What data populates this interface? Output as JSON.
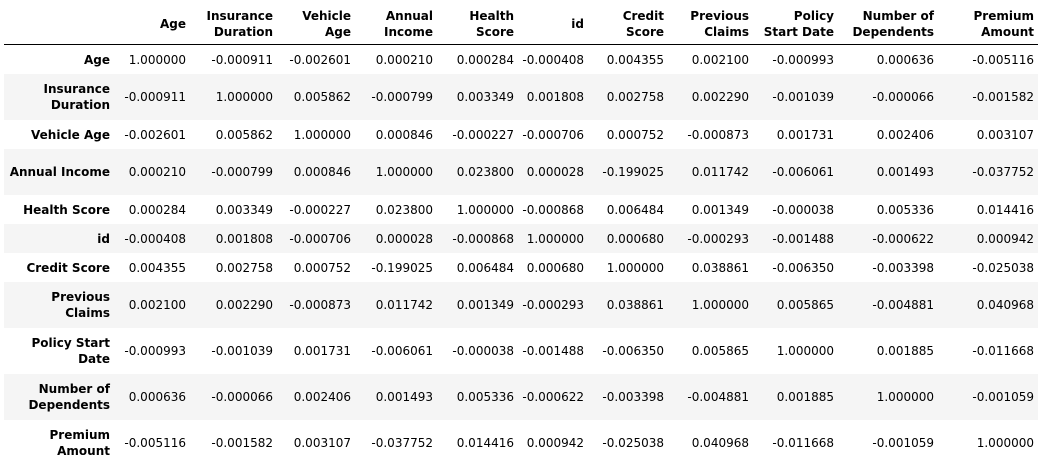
{
  "table": {
    "corner_label": "",
    "columns": [
      "Age",
      "Insurance Duration",
      "Vehicle Age",
      "Annual Income",
      "Health Score",
      "id",
      "Credit Score",
      "Previous Claims",
      "Policy Start Date",
      "Number of Dependents",
      "Premium Amount"
    ],
    "rows": [
      {
        "label": "Age",
        "values": [
          "1.000000",
          "-0.000911",
          "-0.002601",
          "0.000210",
          "0.000284",
          "-0.000408",
          "0.004355",
          "0.002100",
          "-0.000993",
          "0.000636",
          "-0.005116"
        ]
      },
      {
        "label": "Insurance Duration",
        "values": [
          "-0.000911",
          "1.000000",
          "0.005862",
          "-0.000799",
          "0.003349",
          "0.001808",
          "0.002758",
          "0.002290",
          "-0.001039",
          "-0.000066",
          "-0.001582"
        ]
      },
      {
        "label": "Vehicle Age",
        "values": [
          "-0.002601",
          "0.005862",
          "1.000000",
          "0.000846",
          "-0.000227",
          "-0.000706",
          "0.000752",
          "-0.000873",
          "0.001731",
          "0.002406",
          "0.003107"
        ]
      },
      {
        "label": "Annual Income",
        "values": [
          "0.000210",
          "-0.000799",
          "0.000846",
          "1.000000",
          "0.023800",
          "0.000028",
          "-0.199025",
          "0.011742",
          "-0.006061",
          "0.001493",
          "-0.037752"
        ]
      },
      {
        "label": "Health Score",
        "values": [
          "0.000284",
          "0.003349",
          "-0.000227",
          "0.023800",
          "1.000000",
          "-0.000868",
          "0.006484",
          "0.001349",
          "-0.000038",
          "0.005336",
          "0.014416"
        ]
      },
      {
        "label": "id",
        "values": [
          "-0.000408",
          "0.001808",
          "-0.000706",
          "0.000028",
          "-0.000868",
          "1.000000",
          "0.000680",
          "-0.000293",
          "-0.001488",
          "-0.000622",
          "0.000942"
        ]
      },
      {
        "label": "Credit Score",
        "values": [
          "0.004355",
          "0.002758",
          "0.000752",
          "-0.199025",
          "0.006484",
          "0.000680",
          "1.000000",
          "0.038861",
          "-0.006350",
          "-0.003398",
          "-0.025038"
        ]
      },
      {
        "label": "Previous Claims",
        "values": [
          "0.002100",
          "0.002290",
          "-0.000873",
          "0.011742",
          "0.001349",
          "-0.000293",
          "0.038861",
          "1.000000",
          "0.005865",
          "-0.004881",
          "0.040968"
        ]
      },
      {
        "label": "Policy Start Date",
        "values": [
          "-0.000993",
          "-0.001039",
          "0.001731",
          "-0.006061",
          "-0.000038",
          "-0.001488",
          "-0.006350",
          "0.005865",
          "1.000000",
          "0.001885",
          "-0.011668"
        ]
      },
      {
        "label": "Number of Dependents",
        "values": [
          "0.000636",
          "-0.000066",
          "0.002406",
          "0.001493",
          "0.005336",
          "-0.000622",
          "-0.003398",
          "-0.004881",
          "0.001885",
          "1.000000",
          "-0.001059"
        ]
      },
      {
        "label": "Premium Amount",
        "values": [
          "-0.005116",
          "-0.001582",
          "0.003107",
          "-0.037752",
          "0.014416",
          "0.000942",
          "-0.025038",
          "0.040968",
          "-0.011668",
          "-0.001059",
          "1.000000"
        ]
      }
    ]
  }
}
